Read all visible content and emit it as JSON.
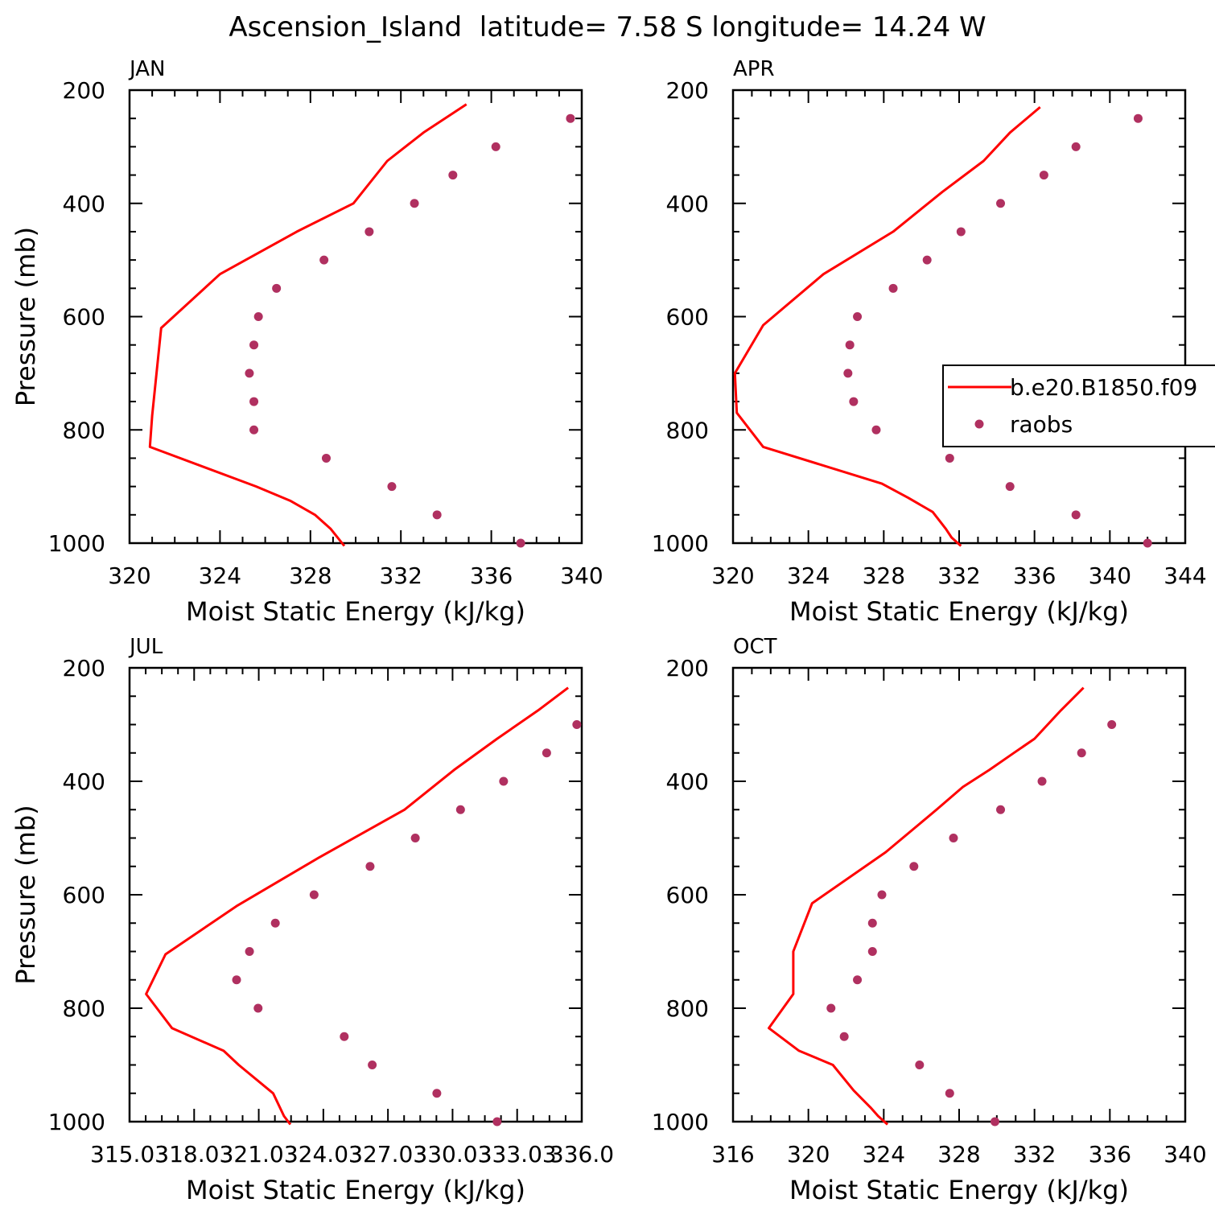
{
  "title": "Ascension_Island  latitude= 7.58 S longitude= 14.24 W",
  "legend": {
    "model_label": "b.e20.B1850.f09",
    "obs_label": "raobs"
  },
  "colors": {
    "model": "#ff0000",
    "obs": "#b03060",
    "axis": "#000000"
  },
  "chart_data": [
    {
      "type": "line",
      "panel_title": "JAN",
      "xlabel": "Moist Static Energy (kJ/kg)",
      "ylabel": "Pressure (mb)",
      "xlim": [
        320,
        340
      ],
      "ylim": [
        1000,
        200
      ],
      "xticks": [
        320,
        324,
        328,
        332,
        336,
        340
      ],
      "xtick_labels": [
        "320",
        "324",
        "328",
        "332",
        "336",
        "340"
      ],
      "yticks": [
        200,
        400,
        600,
        800,
        1000
      ],
      "ytick_labels": [
        "200",
        "400",
        "600",
        "800",
        "1000"
      ],
      "legend": false,
      "series": [
        {
          "name": "b.e20.B1850.f09",
          "style": "line",
          "x": [
            334.9,
            333.0,
            331.4,
            329.9,
            327.4,
            324.0,
            321.4,
            321.0,
            320.9,
            325.6,
            327.1,
            328.2,
            328.9,
            329.1,
            329.5
          ],
          "y": [
            225,
            275,
            325,
            400,
            450,
            525,
            620,
            775,
            830,
            900,
            925,
            950,
            975,
            985,
            1005
          ]
        },
        {
          "name": "raobs",
          "style": "marker",
          "x": [
            339.5,
            336.2,
            334.3,
            332.6,
            330.6,
            328.6,
            326.5,
            325.7,
            325.5,
            325.3,
            325.5,
            325.5,
            328.7,
            331.6,
            333.6,
            337.3
          ],
          "y": [
            250,
            300,
            350,
            400,
            450,
            500,
            550,
            600,
            650,
            700,
            750,
            800,
            850,
            900,
            950,
            1000
          ]
        }
      ]
    },
    {
      "type": "line",
      "panel_title": "APR",
      "xlabel": "Moist Static Energy (kJ/kg)",
      "ylabel": "",
      "xlim": [
        320,
        344
      ],
      "ylim": [
        1000,
        200
      ],
      "xticks": [
        320,
        324,
        328,
        332,
        336,
        340,
        344
      ],
      "xtick_labels": [
        "320",
        "324",
        "328",
        "332",
        "336",
        "340",
        "344"
      ],
      "yticks": [
        200,
        400,
        600,
        800,
        1000
      ],
      "ytick_labels": [
        "200",
        "400",
        "600",
        "800",
        "1000"
      ],
      "legend": true,
      "legend_position": "middle-right",
      "series": [
        {
          "name": "b.e20.B1850.f09",
          "style": "line",
          "x": [
            336.3,
            334.7,
            333.3,
            331.1,
            328.5,
            324.8,
            321.6,
            320.1,
            320.2,
            321.6,
            327.9,
            329.3,
            330.6,
            331.3,
            331.6,
            332.1
          ],
          "y": [
            230,
            275,
            325,
            380,
            450,
            525,
            615,
            700,
            770,
            830,
            895,
            920,
            945,
            975,
            990,
            1005
          ]
        },
        {
          "name": "raobs",
          "style": "marker",
          "x": [
            341.5,
            338.2,
            336.5,
            334.2,
            332.1,
            330.3,
            328.5,
            326.6,
            326.2,
            326.1,
            326.4,
            327.6,
            331.5,
            334.7,
            338.2,
            342.0
          ],
          "y": [
            250,
            300,
            350,
            400,
            450,
            500,
            550,
            600,
            650,
            700,
            750,
            800,
            850,
            900,
            950,
            1000
          ]
        }
      ]
    },
    {
      "type": "line",
      "panel_title": "JUL",
      "xlabel": "Moist Static Energy (kJ/kg)",
      "ylabel": "Pressure (mb)",
      "xlim": [
        315.03,
        336.03
      ],
      "ylim": [
        1000,
        200
      ],
      "xticks": [
        315.03,
        318.03,
        321.03,
        324.03,
        327.03,
        330.03,
        333.03,
        336.03
      ],
      "xtick_labels": [
        "315.03",
        "318.03",
        "321.03",
        "324.03",
        "327.03",
        "330.03",
        "333.03",
        "336.0"
      ],
      "yticks": [
        200,
        400,
        600,
        800,
        1000
      ],
      "ytick_labels": [
        "200",
        "400",
        "600",
        "800",
        "1000"
      ],
      "legend": false,
      "series": [
        {
          "name": "b.e20.B1850.f09",
          "style": "line",
          "x": [
            335.4,
            334.0,
            332.1,
            330.1,
            327.8,
            323.8,
            320.0,
            316.7,
            315.8,
            317.0,
            319.4,
            320.1,
            321.7,
            322.2,
            322.5
          ],
          "y": [
            235,
            275,
            325,
            380,
            450,
            535,
            620,
            705,
            775,
            835,
            875,
            900,
            950,
            990,
            1005
          ]
        },
        {
          "name": "raobs",
          "style": "marker",
          "x": [
            335.8,
            334.4,
            332.4,
            330.4,
            328.3,
            326.2,
            323.6,
            321.8,
            320.6,
            320.0,
            321.0,
            325.0,
            326.3,
            329.3,
            332.1
          ],
          "y": [
            300,
            350,
            400,
            450,
            500,
            550,
            600,
            650,
            700,
            750,
            800,
            850,
            900,
            950,
            1000
          ]
        }
      ]
    },
    {
      "type": "line",
      "panel_title": "OCT",
      "xlabel": "Moist Static Energy (kJ/kg)",
      "ylabel": "",
      "xlim": [
        316,
        340
      ],
      "ylim": [
        1000,
        200
      ],
      "xticks": [
        316,
        320,
        324,
        328,
        332,
        336,
        340
      ],
      "xtick_labels": [
        "316",
        "320",
        "324",
        "328",
        "332",
        "336",
        "340"
      ],
      "yticks": [
        200,
        400,
        600,
        800,
        1000
      ],
      "ytick_labels": [
        "200",
        "400",
        "600",
        "800",
        "1000"
      ],
      "legend": false,
      "series": [
        {
          "name": "b.e20.B1850.f09",
          "style": "line",
          "x": [
            334.6,
            333.4,
            332.0,
            330.9,
            329.6,
            328.2,
            326.8,
            324.1,
            320.2,
            319.2,
            319.2,
            317.9,
            319.5,
            321.3,
            322.4,
            323.3,
            323.7,
            324.2
          ],
          "y": [
            235,
            275,
            325,
            350,
            380,
            410,
            450,
            525,
            615,
            700,
            775,
            835,
            875,
            900,
            945,
            975,
            990,
            1005
          ]
        },
        {
          "name": "raobs",
          "style": "marker",
          "x": [
            336.1,
            334.5,
            332.4,
            330.2,
            327.7,
            325.6,
            323.9,
            323.4,
            323.4,
            322.6,
            321.2,
            321.9,
            325.9,
            327.5,
            329.9
          ],
          "y": [
            300,
            350,
            400,
            450,
            500,
            550,
            600,
            650,
            700,
            750,
            800,
            850,
            900,
            950,
            1000
          ]
        }
      ]
    }
  ]
}
